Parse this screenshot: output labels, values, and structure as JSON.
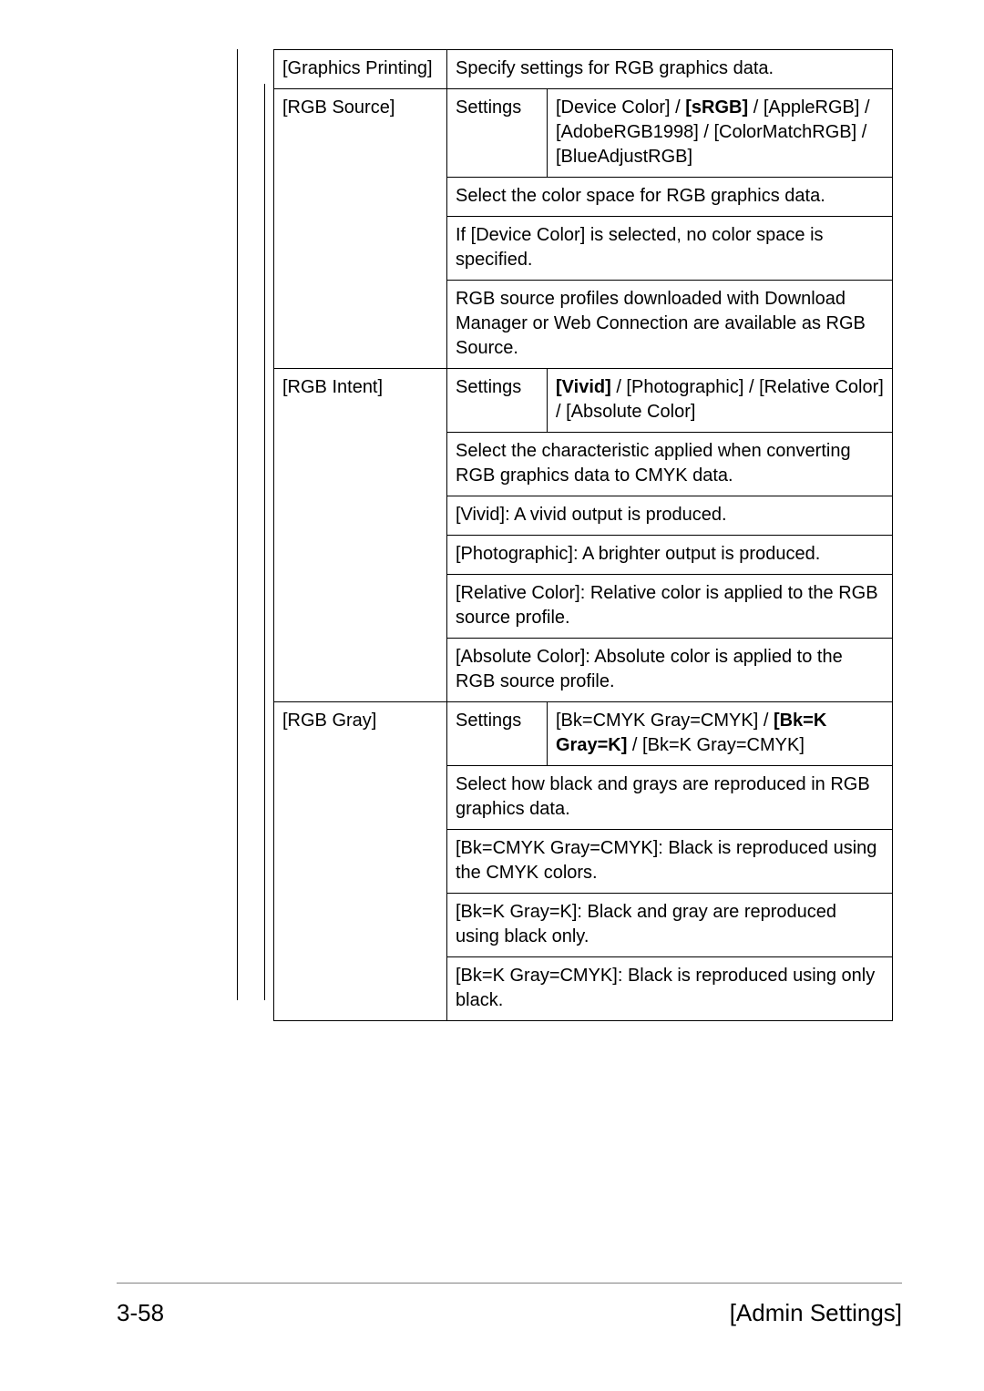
{
  "footer": {
    "page": "3-58",
    "section": "[Admin Settings]"
  },
  "table": {
    "graphics_printing_label": "[Graphics Printing]",
    "graphics_printing_desc": "Specify settings for RGB graphics data.",
    "rgb_source": {
      "label": "[RGB Source]",
      "settings_label": "Settings",
      "options_a": "[Device Color] / ",
      "options_bold": "[sRGB]",
      "options_b": " / [AppleRGB] / [AdobeRGB1998] / [ColorMatchRGB] / [BlueAdjustRGB]",
      "desc1": "Select the color space for RGB graphics data.",
      "desc2": "If [Device Color] is selected, no color space is specified.",
      "desc3": "RGB source profiles downloaded with Download Manager or Web Connection are available as RGB Source."
    },
    "rgb_intent": {
      "label": "[RGB Intent]",
      "settings_label": "Settings",
      "options_bold": "[Vivid]",
      "options_rest": " / [Photographic] / [Relative Color] / [Absolute Color]",
      "desc1": "Select the characteristic applied when converting RGB graphics data to CMYK data.",
      "desc2": "[Vivid]: A vivid output is produced.",
      "desc3": "[Photographic]: A brighter output is produced.",
      "desc4": "[Relative Color]: Relative color is applied to the RGB source profile.",
      "desc5": "[Absolute Color]: Absolute color is applied to the RGB source profile."
    },
    "rgb_gray": {
      "label": "[RGB Gray]",
      "settings_label": "Settings",
      "options_a": "[Bk=CMYK Gray=CMYK] / ",
      "options_bold": "[Bk=K Gray=K]",
      "options_b": " / [Bk=K Gray=CMYK]",
      "desc1": "Select how black and grays are reproduced in RGB graphics data.",
      "desc2": "[Bk=CMYK Gray=CMYK]: Black is reproduced using the CMYK colors.",
      "desc3": "[Bk=K Gray=K]: Black and gray are reproduced using black only.",
      "desc4": "[Bk=K Gray=CMYK]: Black is reproduced using only black."
    }
  }
}
